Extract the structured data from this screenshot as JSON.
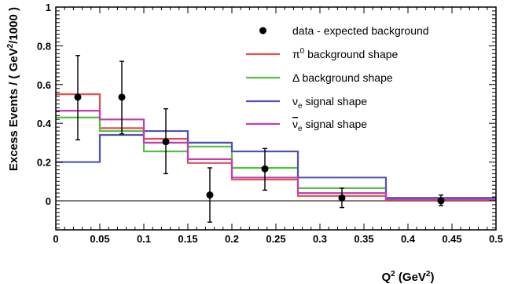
{
  "chart_data": {
    "type": "line",
    "xlabel": "Q",
    "xlabel_sup": "2",
    "xlabel_unit_pre": " (GeV",
    "xlabel_unit_sup": "2",
    "xlabel_unit_post": ")",
    "ylabel": "Excess Events / ( GeV",
    "ylabel_sup": "2",
    "ylabel_post": "/1000 )",
    "xlim": [
      0,
      0.5
    ],
    "ylim": [
      -0.15,
      1.0
    ],
    "grid": false,
    "legend_position": "top-right",
    "x_ticks": [
      "0",
      "0.05",
      "0.1",
      "0.15",
      "0.2",
      "0.25",
      "0.3",
      "0.35",
      "0.4",
      "0.45",
      "0.5"
    ],
    "x_tick_values": [
      0,
      0.05,
      0.1,
      0.15,
      0.2,
      0.25,
      0.3,
      0.35,
      0.4,
      0.45,
      0.5
    ],
    "y_ticks": [
      "0",
      "0.2",
      "0.4",
      "0.6",
      "0.8",
      "1"
    ],
    "y_tick_values": [
      0,
      0.2,
      0.4,
      0.6,
      0.8,
      1.0
    ],
    "bin_edges": [
      0,
      0.05,
      0.1,
      0.15,
      0.2,
      0.275,
      0.375,
      0.5
    ],
    "data": {
      "name": "data - expected background",
      "x": [
        0.025,
        0.075,
        0.125,
        0.175,
        0.2375,
        0.325,
        0.4375
      ],
      "y": [
        0.535,
        0.535,
        0.305,
        0.03,
        0.165,
        0.015,
        0.0
      ],
      "err_low": [
        0.22,
        0.19,
        0.165,
        0.14,
        0.11,
        0.05,
        0.025
      ],
      "err_high": [
        0.215,
        0.185,
        0.17,
        0.14,
        0.105,
        0.05,
        0.03
      ],
      "color": "#000000"
    },
    "series": [
      {
        "name": "π",
        "name_sup": "0",
        "name_post": " background shape",
        "color": "#e05050",
        "values": [
          0.55,
          0.375,
          0.32,
          0.195,
          0.11,
          0.025,
          0.005
        ]
      },
      {
        "name": "Δ background shape",
        "color": "#55c040",
        "values": [
          0.43,
          0.36,
          0.255,
          0.28,
          0.17,
          0.065,
          0.01
        ]
      },
      {
        "name": "ν",
        "name_sub": "e",
        "name_post": " signal shape",
        "color": "#5050b8",
        "values": [
          0.2,
          0.34,
          0.36,
          0.3,
          0.255,
          0.12,
          0.015
        ]
      },
      {
        "name": "ν",
        "name_sub": "e",
        "name_post": " signal shape",
        "name_bar": true,
        "color": "#c040b0",
        "values": [
          0.465,
          0.42,
          0.3,
          0.215,
          0.12,
          0.04,
          0.008
        ]
      }
    ]
  }
}
